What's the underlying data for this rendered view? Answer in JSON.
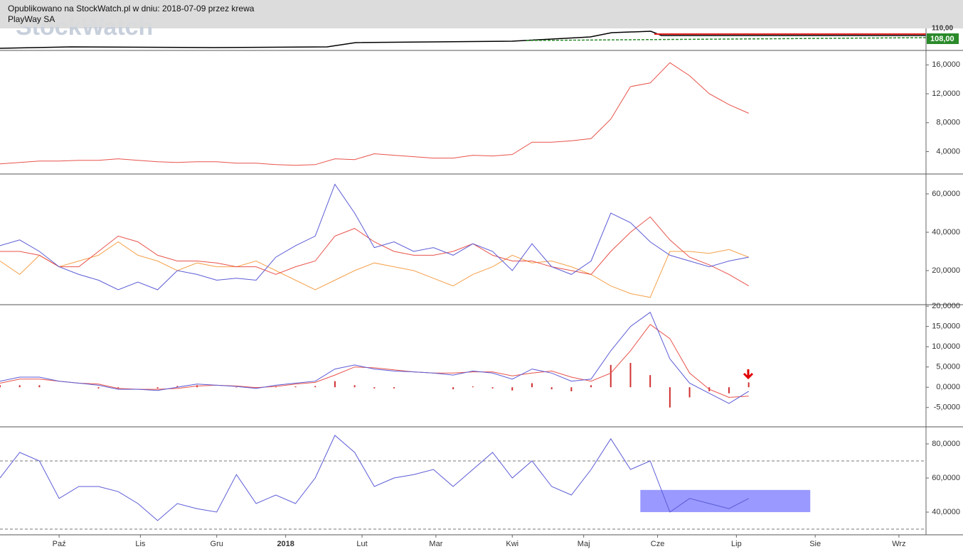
{
  "header": {
    "line1": "Opublikowano na StockWatch.pl w dniu: 2018-07-09 przez krewa",
    "line2": "PlayWay SA",
    "watermark": "StockWatch"
  },
  "top_panel": {
    "price_labels": [
      "110,00",
      "108,00"
    ]
  },
  "chart_data": [
    {
      "type": "line",
      "xlim": [
        0,
        376
      ],
      "ylim": [
        1,
        17.9
      ],
      "yticks": [
        {
          "value": 4,
          "label": "4,0000"
        },
        {
          "value": 8,
          "label": "8,0000"
        },
        {
          "value": 12,
          "label": "12,0000"
        },
        {
          "value": 16,
          "label": "16,0000"
        }
      ],
      "x": [
        0,
        8,
        16,
        24,
        32,
        40,
        48,
        56,
        64,
        72,
        80,
        88,
        96,
        104,
        112,
        120,
        128,
        136,
        144,
        152,
        160,
        168,
        176,
        184,
        192,
        200,
        208,
        216,
        224,
        232,
        240,
        248,
        256,
        264,
        272,
        280,
        288,
        296,
        304
      ],
      "series": [
        {
          "color": "#e8524a",
          "values": [
            2.3,
            2.5,
            2.7,
            2.7,
            2.8,
            2.8,
            3.0,
            2.8,
            2.6,
            2.5,
            2.6,
            2.6,
            2.4,
            2.4,
            2.2,
            2.1,
            2.2,
            3.0,
            2.9,
            3.7,
            3.5,
            3.3,
            3.1,
            3.1,
            3.5,
            3.4,
            3.6,
            5.3,
            5.3,
            5.5,
            5.8,
            8.5,
            13.0,
            13.5,
            16.3,
            14.5,
            12.0,
            10.5,
            9.3
          ]
        }
      ]
    },
    {
      "type": "line",
      "xlim": [
        0,
        376
      ],
      "ylim": [
        2.6,
        70
      ],
      "yticks": [
        {
          "value": 20,
          "label": "20,0000"
        },
        {
          "value": 40,
          "label": "40,0000"
        },
        {
          "value": 60,
          "label": "60,0000"
        }
      ],
      "x": [
        0,
        8,
        16,
        24,
        32,
        40,
        48,
        56,
        64,
        72,
        80,
        88,
        96,
        104,
        112,
        120,
        128,
        136,
        144,
        152,
        160,
        168,
        176,
        184,
        192,
        200,
        208,
        216,
        224,
        232,
        240,
        248,
        256,
        264,
        272,
        280,
        288,
        296,
        304
      ],
      "series": [
        {
          "color": "#f5a04a",
          "values": [
            25,
            18,
            28,
            22,
            25,
            28,
            35,
            28,
            25,
            20,
            24,
            22,
            22,
            25,
            20,
            15,
            10,
            15,
            20,
            24,
            22,
            20,
            16,
            12,
            18,
            22,
            28,
            24,
            25,
            22,
            18,
            12,
            8,
            6,
            30,
            30,
            29,
            31,
            27
          ]
        },
        {
          "color": "#e8524a",
          "values": [
            30,
            30,
            28,
            22,
            22,
            30,
            38,
            35,
            28,
            25,
            25,
            24,
            22,
            22,
            18,
            22,
            25,
            38,
            42,
            35,
            30,
            28,
            28,
            30,
            34,
            28,
            25,
            25,
            22,
            20,
            18,
            30,
            40,
            48,
            36,
            27,
            23,
            18,
            12
          ]
        },
        {
          "color": "#5b5bd6",
          "values": [
            33,
            36,
            30,
            22,
            18,
            15,
            10,
            14,
            10,
            20,
            18,
            15,
            16,
            15,
            27,
            33,
            38,
            65,
            50,
            32,
            35,
            30,
            32,
            28,
            34,
            30,
            20,
            34,
            22,
            18,
            25,
            50,
            45,
            35,
            28,
            25,
            22,
            25,
            27
          ]
        }
      ]
    },
    {
      "type": "line",
      "xlim": [
        0,
        376
      ],
      "ylim": [
        -9.6,
        20.2
      ],
      "yticks": [
        {
          "value": -5,
          "label": "-5,0000"
        },
        {
          "value": 0,
          "label": "0,0000"
        },
        {
          "value": 5,
          "label": "5,0000"
        },
        {
          "value": 10,
          "label": "10,0000"
        },
        {
          "value": 15,
          "label": "15,0000"
        },
        {
          "value": 20,
          "label": "20,0000"
        }
      ],
      "x": [
        0,
        8,
        16,
        24,
        32,
        40,
        48,
        56,
        64,
        72,
        80,
        88,
        96,
        104,
        112,
        120,
        128,
        136,
        144,
        152,
        160,
        168,
        176,
        184,
        192,
        200,
        208,
        216,
        224,
        232,
        240,
        248,
        256,
        264,
        272,
        280,
        288,
        296,
        304
      ],
      "series": [
        {
          "type": "bar",
          "color": "#d03030",
          "values": [
            0.5,
            0.5,
            0.5,
            0,
            0,
            -0.3,
            -0.2,
            0,
            -0.3,
            0.3,
            0.5,
            0,
            -0.1,
            -0.2,
            0.3,
            0.2,
            0.3,
            1.5,
            0.5,
            -0.3,
            -0.3,
            0,
            0,
            -0.5,
            0.2,
            -0.3,
            -0.8,
            1.0,
            -0.5,
            -1.0,
            0.5,
            5.5,
            6.0,
            3.0,
            -5.0,
            -2.5,
            -1.0,
            -1.5,
            1.2
          ]
        },
        {
          "color": "#e8524a",
          "values": [
            1.0,
            2.0,
            2.0,
            1.5,
            1.0,
            0.8,
            -0.3,
            -0.5,
            -0.5,
            -0.3,
            0.3,
            0.5,
            0.3,
            -0.1,
            0.2,
            0.8,
            1.2,
            3.0,
            5.0,
            4.8,
            4.3,
            3.8,
            3.5,
            3.5,
            3.8,
            3.8,
            2.8,
            3.5,
            4.0,
            2.5,
            1.5,
            3.5,
            9.0,
            15.5,
            12.0,
            3.5,
            -0.5,
            -2.5,
            -2.2
          ]
        },
        {
          "color": "#5b5bd6",
          "values": [
            1.5,
            2.5,
            2.5,
            1.5,
            1.0,
            0.5,
            -0.5,
            -0.5,
            -0.8,
            0.0,
            0.8,
            0.5,
            0.2,
            -0.3,
            0.5,
            1.0,
            1.5,
            4.5,
            5.5,
            4.5,
            4.0,
            3.8,
            3.5,
            3.0,
            4.0,
            3.5,
            2.0,
            4.5,
            3.5,
            1.5,
            2.0,
            9.0,
            15.0,
            18.5,
            7.0,
            1.0,
            -1.5,
            -4.0,
            -1.0
          ]
        }
      ]
    },
    {
      "type": "line",
      "xlim": [
        0,
        376
      ],
      "ylim": [
        27.1,
        89.6
      ],
      "yticks": [
        {
          "value": 40,
          "label": "40,0000"
        },
        {
          "value": 60,
          "label": "60,0000"
        },
        {
          "value": 80,
          "label": "80,0000"
        }
      ],
      "xticks": [
        {
          "value": 24,
          "label": "Paź"
        },
        {
          "value": 57,
          "label": "Lis"
        },
        {
          "value": 88,
          "label": "Gru"
        },
        {
          "value": 116,
          "label": "2018"
        },
        {
          "value": 147,
          "label": "Lut"
        },
        {
          "value": 177,
          "label": "Mar"
        },
        {
          "value": 208,
          "label": "Kwi"
        },
        {
          "value": 237,
          "label": "Maj"
        },
        {
          "value": 267,
          "label": "Cze"
        },
        {
          "value": 299,
          "label": "Lip"
        },
        {
          "value": 331,
          "label": "Sie"
        },
        {
          "value": 365,
          "label": "Wrz"
        }
      ],
      "reference_lines": [
        70,
        30
      ],
      "highlight": {
        "x": [
          260,
          329
        ],
        "y": [
          40,
          53
        ],
        "color": "#8080ff"
      },
      "x": [
        0,
        8,
        16,
        24,
        32,
        40,
        48,
        56,
        64,
        72,
        80,
        88,
        96,
        104,
        112,
        120,
        128,
        136,
        144,
        152,
        160,
        168,
        176,
        184,
        192,
        200,
        208,
        216,
        224,
        232,
        240,
        248,
        256,
        264,
        272,
        280,
        288,
        296,
        304
      ],
      "series": [
        {
          "color": "#5b5bd6",
          "values": [
            60,
            75,
            70,
            48,
            55,
            55,
            52,
            45,
            35,
            45,
            42,
            40,
            62,
            45,
            50,
            45,
            60,
            85,
            75,
            55,
            60,
            62,
            65,
            55,
            65,
            75,
            60,
            70,
            55,
            50,
            65,
            83,
            65,
            70,
            40,
            48,
            45,
            42,
            48
          ]
        }
      ]
    }
  ]
}
